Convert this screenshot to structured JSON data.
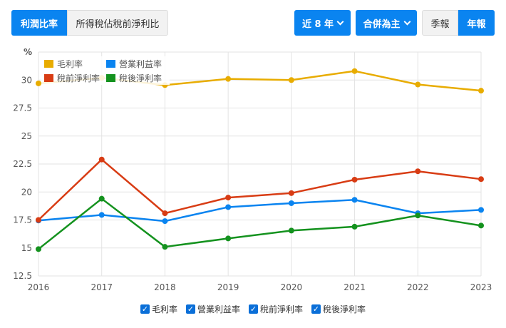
{
  "toolbar": {
    "tab_margin": "利潤比率",
    "tab_tax": "所得稅佔稅前淨利比",
    "range": "近 8 年",
    "scope": "合併為主",
    "quarterly": "季報",
    "annual": "年報"
  },
  "chart_data": {
    "type": "line",
    "ylabel": "%",
    "ylim": [
      12.5,
      32.5
    ],
    "yticks": [
      "12.5",
      "15",
      "17.5",
      "20",
      "22.5",
      "25",
      "27.5",
      "30"
    ],
    "grid": true,
    "legend_placement": "top-left",
    "categories": [
      "2016",
      "2017",
      "2018",
      "2019",
      "2020",
      "2021",
      "2022",
      "2023"
    ],
    "series": [
      {
        "name": "毛利率",
        "color": "#e8ac00",
        "values": [
          29.7,
          30.2,
          29.55,
          30.1,
          30.0,
          30.8,
          29.6,
          29.05
        ]
      },
      {
        "name": "營業利益率",
        "color": "#0a84f0",
        "values": [
          17.45,
          17.95,
          17.4,
          18.65,
          19.0,
          19.3,
          18.1,
          18.4
        ]
      },
      {
        "name": "稅前淨利率",
        "color": "#d83c14",
        "values": [
          17.5,
          22.9,
          18.1,
          19.5,
          19.9,
          21.1,
          21.85,
          21.15
        ]
      },
      {
        "name": "稅後淨利率",
        "color": "#14921e",
        "values": [
          14.9,
          19.4,
          15.1,
          15.85,
          16.55,
          16.9,
          17.9,
          17.0
        ]
      }
    ]
  },
  "bottom_legend": {
    "check": "✓"
  }
}
